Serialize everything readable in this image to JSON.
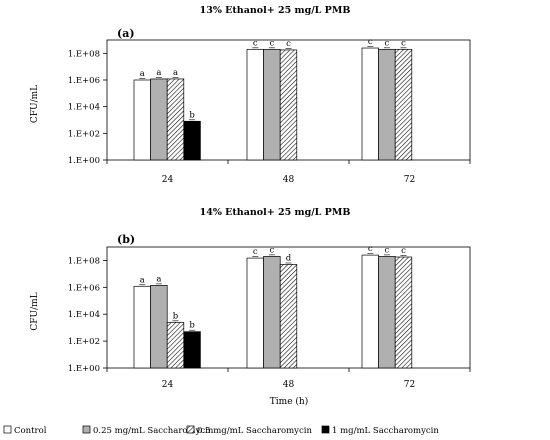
{
  "legend": [
    {
      "label": "Control",
      "fill": "#ffffff"
    },
    {
      "label": "0.25 mg/mL Saccharomycin",
      "fill": "#b0b0b0"
    },
    {
      "label": "0.5 mg/mL Saccharomycin",
      "fill": "hatch"
    },
    {
      "label": "1 mg/mL  Saccharomycin",
      "fill": "#000000"
    }
  ],
  "colors": {
    "control": "#ffffff",
    "grey": "#b0b0b0",
    "hatch": "#000000",
    "black": "#000000",
    "frame": "#000000"
  },
  "chart_data": [
    {
      "type": "bar",
      "panel_label": "(a)",
      "title": "13% Ethanol+ 25 mg/L PMB",
      "ylabel": "CFU/mL",
      "xlabel": "",
      "y_scale": "log",
      "ylim": [
        1,
        1000000000
      ],
      "y_ticks": [
        "1.E+00",
        "1.E+02",
        "1.E+04",
        "1.E+06",
        "1.E+08"
      ],
      "categories": [
        "24",
        "48",
        "72"
      ],
      "series": [
        {
          "name": "Control",
          "values": [
            1000000,
            200000000,
            250000000
          ],
          "letters": [
            "a",
            "c",
            "c"
          ]
        },
        {
          "name": "0.25 mg/mL Saccharomycin",
          "values": [
            1200000,
            200000000,
            200000000
          ],
          "letters": [
            "a",
            "c",
            "c"
          ]
        },
        {
          "name": "0.5 mg/mL Saccharomycin",
          "values": [
            1200000,
            180000000,
            200000000
          ],
          "letters": [
            "a",
            "c",
            "c"
          ]
        },
        {
          "name": "1 mg/mL  Saccharomycin",
          "values": [
            800,
            null,
            null
          ],
          "letters": [
            "b",
            "",
            ""
          ]
        }
      ]
    },
    {
      "type": "bar",
      "panel_label": "(b)",
      "title": "14% Ethanol+ 25 mg/L PMB",
      "ylabel": "CFU/mL",
      "xlabel": "Time (h)",
      "y_scale": "log",
      "ylim": [
        1,
        1000000000
      ],
      "y_ticks": [
        "1.E+00",
        "1.E+02",
        "1.E+04",
        "1.E+06",
        "1.E+08"
      ],
      "categories": [
        "24",
        "48",
        "72"
      ],
      "series": [
        {
          "name": "Control",
          "values": [
            1200000,
            150000000,
            250000000
          ],
          "letters": [
            "a",
            "c",
            "c"
          ]
        },
        {
          "name": "0.25 mg/mL Saccharomycin",
          "values": [
            1400000,
            200000000,
            200000000
          ],
          "letters": [
            "a",
            "c",
            "c"
          ]
        },
        {
          "name": "0.5 mg/mL Saccharomycin",
          "values": [
            2500,
            50000000,
            180000000
          ],
          "letters": [
            "b",
            "d",
            "c"
          ]
        },
        {
          "name": "1 mg/mL  Saccharomycin",
          "values": [
            500,
            null,
            null
          ],
          "letters": [
            "b",
            "",
            ""
          ]
        }
      ]
    }
  ]
}
